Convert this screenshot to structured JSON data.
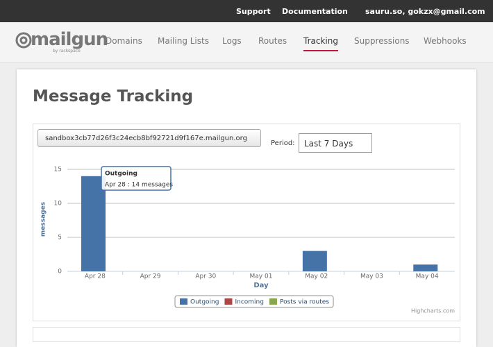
{
  "topbar": {
    "links": [
      "Support",
      "Documentation"
    ],
    "account": "sauru.so, gokzx@gmail.com"
  },
  "logo": {
    "name": "mailgun",
    "tagline": "by rackspace"
  },
  "nav": {
    "items": [
      "Domains",
      "Mailing Lists",
      "Logs",
      "Routes",
      "Tracking",
      "Suppressions",
      "Webhooks"
    ],
    "active": 4
  },
  "page": {
    "title": "Message Tracking",
    "domain": "sandbox3cb77d26f3c24ecb8bf92721d9f167e.mailgun.org",
    "period_label": "Period:",
    "period": "Last 7 Days"
  },
  "chart_data": {
    "type": "bar",
    "y_label": "messages",
    "x_label": "Day",
    "categories": [
      "Apr 28",
      "Apr 29",
      "Apr 30",
      "May 01",
      "May 02",
      "May 03",
      "May 04"
    ],
    "series": [
      {
        "name": "Outgoing",
        "color": "#4572A7",
        "values": [
          14,
          0,
          0,
          0,
          3,
          0,
          1
        ]
      },
      {
        "name": "Incoming",
        "color": "#AA4643",
        "values": [
          0,
          0,
          0,
          0,
          0,
          0,
          0
        ]
      },
      {
        "name": "Posts via routes",
        "color": "#89A54E",
        "values": [
          0,
          0,
          0,
          0,
          0,
          0,
          0
        ]
      }
    ],
    "ylim": [
      0,
      15
    ],
    "yticks": [
      0,
      5,
      10,
      15
    ],
    "grid": true,
    "tooltip": {
      "title": "Outgoing",
      "text": "Apr 28 : 14 messages"
    },
    "credits": "Highcharts.com"
  }
}
